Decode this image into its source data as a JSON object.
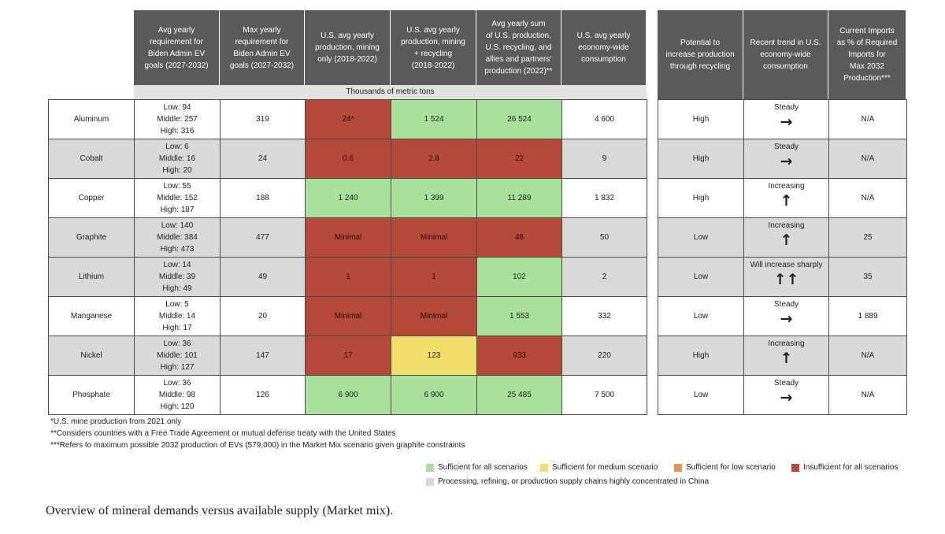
{
  "headers": [
    "Avg yearly\nrequirement for\nBiden Admin EV\ngoals (2027-2032)",
    "Max yearly\nrequirement for\nBiden Admin EV\ngoals (2027-2032)",
    "U.S. avg yearly\nproduction, mining\nonly (2018-2022)",
    "U.S. avg yearly\nproduction, mining\n+ recycling\n(2018-2022)",
    "Avg yearly sum\nof U.S. production,\nU.S. recycling, and\nallies and partners'\nproduction (2022)**",
    "U.S. avg yearly\neconomy-wide\nconsumption",
    "Potential to\nincrease production\nthrough recycling",
    "Recent trend in U.S.\neconomy-wide\nconsumption",
    "Current Imports\nas % of Required\nImports for\nMax 2032\nProduction***"
  ],
  "units_label": "Thousands of metric tons",
  "rows": [
    {
      "mineral": "Aluminum",
      "avg": "Low: 94\nMiddle: 257\nHigh: 316",
      "max": "319",
      "mining": "24*",
      "mining_recycling": "1 524",
      "allies": "26 524",
      "consumption": "4 600",
      "potential": "High",
      "trend_label": "Steady",
      "trend_arrow": "→",
      "imports": "N/A",
      "colors": {
        "row": "white",
        "mining": "red",
        "mining_recycling": "green",
        "allies": "green"
      }
    },
    {
      "mineral": "Cobalt",
      "avg": "Low: 6\nMiddle: 16\nHigh: 20",
      "max": "24",
      "mining": "0.6",
      "mining_recycling": "2.8",
      "allies": "22",
      "consumption": "9",
      "potential": "High",
      "trend_label": "Steady",
      "trend_arrow": "→",
      "imports": "N/A",
      "colors": {
        "row": "gray",
        "mining": "red",
        "mining_recycling": "red",
        "allies": "red"
      }
    },
    {
      "mineral": "Copper",
      "avg": "Low: 55\nMiddle: 152\nHigh: 187",
      "max": "188",
      "mining": "1 240",
      "mining_recycling": "1 399",
      "allies": "11 289",
      "consumption": "1 832",
      "potential": "High",
      "trend_label": "Increasing",
      "trend_arrow": "↑",
      "imports": "N/A",
      "colors": {
        "row": "white",
        "mining": "green",
        "mining_recycling": "green",
        "allies": "green"
      }
    },
    {
      "mineral": "Graphite",
      "avg": "Low: 140\nMiddle: 384\nHigh: 473",
      "max": "477",
      "mining": "Minimal",
      "mining_recycling": "Minimal",
      "allies": "48",
      "consumption": "50",
      "potential": "Low",
      "trend_label": "Increasing",
      "trend_arrow": "↑",
      "imports": "25",
      "colors": {
        "row": "gray",
        "mining": "red",
        "mining_recycling": "red",
        "allies": "red"
      }
    },
    {
      "mineral": "Lithium",
      "avg": "Low: 14\nMiddle: 39\nHigh: 49",
      "max": "49",
      "mining": "1",
      "mining_recycling": "1",
      "allies": "102",
      "consumption": "2",
      "potential": "Low",
      "trend_label": "Will increase sharply",
      "trend_arrow": "↑↑",
      "imports": "35",
      "colors": {
        "row": "gray",
        "mining": "red",
        "mining_recycling": "red",
        "allies": "green"
      }
    },
    {
      "mineral": "Manganese",
      "avg": "Low: 5\nMiddle: 14\nHigh: 17",
      "max": "20",
      "mining": "Minimal",
      "mining_recycling": "Minimal",
      "allies": "1 553",
      "consumption": "332",
      "potential": "Low",
      "trend_label": "Steady",
      "trend_arrow": "→",
      "imports": "1 889",
      "colors": {
        "row": "white",
        "mining": "red",
        "mining_recycling": "red",
        "allies": "green"
      }
    },
    {
      "mineral": "Nickel",
      "avg": "Low: 36\nMiddle: 101\nHigh: 127",
      "max": "147",
      "mining": "17",
      "mining_recycling": "123",
      "allies": "933",
      "consumption": "220",
      "potential": "High",
      "trend_label": "Increasing",
      "trend_arrow": "↑",
      "imports": "N/A",
      "colors": {
        "row": "gray",
        "mining": "red",
        "mining_recycling": "yellow",
        "allies": "red"
      }
    },
    {
      "mineral": "Phosphate",
      "avg": "Low: 36\nMiddle: 98\nHigh: 120",
      "max": "126",
      "mining": "6 900",
      "mining_recycling": "6 900",
      "allies": "25 485",
      "consumption": "7 500",
      "potential": "Low",
      "trend_label": "Steady",
      "trend_arrow": "→",
      "imports": "N/A",
      "colors": {
        "row": "white",
        "mining": "green",
        "mining_recycling": "green",
        "allies": "green"
      }
    }
  ],
  "footnotes": [
    "*U.S. mine production from 2021 only",
    "**Considers countries with a Free Trade Agreement or mutual defense treaty with the United States",
    "***Refers to maximum possible 2032 production of EVs (579,000) in the Market Mix scenario given graphite constraints"
  ],
  "legend": [
    {
      "label": "Sufficient for all scenarios",
      "color": "#a9e19c"
    },
    {
      "label": "Sufficient for medium scenario",
      "color": "#f1dd6a"
    },
    {
      "label": "Sufficient for low scenario",
      "color": "#e8935a"
    },
    {
      "label": "Insufficient for all scenarios",
      "color": "#b64a3a"
    },
    {
      "label": "Processing, refining, or production supply chains highly concentrated in China",
      "color": "#d9d9d9"
    }
  ],
  "caption": "Overview of mineral demands versus available supply (Market mix)."
}
